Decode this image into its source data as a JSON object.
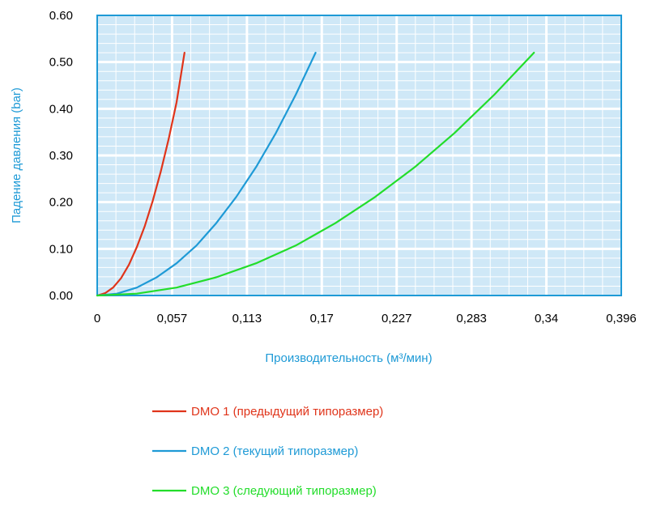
{
  "chart_data": {
    "type": "line",
    "title": "",
    "xlabel": "Производительность (м³/мин)",
    "ylabel": "Падение давления (bar)",
    "x_ticks": [
      "0",
      "0,057",
      "0,113",
      "0,17",
      "0,227",
      "0,283",
      "0,34",
      "0,396"
    ],
    "y_ticks": [
      "0.00",
      "0.10",
      "0.20",
      "0.30",
      "0.40",
      "0.50",
      "0.60"
    ],
    "xlim": [
      0,
      0.396
    ],
    "ylim": [
      0,
      0.6
    ],
    "grid": true,
    "legend_position": "bottom",
    "series": [
      {
        "name": "DMO 1 (предыдущий типоразмер)",
        "color": "#e0341a",
        "x": [
          0,
          0.006,
          0.012,
          0.018,
          0.024,
          0.03,
          0.036,
          0.042,
          0.048,
          0.054,
          0.06,
          0.066
        ],
        "y": [
          0,
          0.005,
          0.017,
          0.037,
          0.066,
          0.104,
          0.149,
          0.203,
          0.265,
          0.335,
          0.414,
          0.52
        ]
      },
      {
        "name": "DMO 2 (текущий типоразмер)",
        "color": "#1e9ad6",
        "x": [
          0,
          0.015,
          0.03,
          0.045,
          0.06,
          0.075,
          0.09,
          0.105,
          0.12,
          0.135,
          0.15,
          0.165
        ],
        "y": [
          0,
          0.004,
          0.017,
          0.039,
          0.069,
          0.107,
          0.155,
          0.211,
          0.275,
          0.348,
          0.43,
          0.52
        ]
      },
      {
        "name": "DMO 3 (следующий типоразмер)",
        "color": "#22dd2a",
        "x": [
          0,
          0.03,
          0.06,
          0.09,
          0.12,
          0.15,
          0.18,
          0.21,
          0.24,
          0.27,
          0.3,
          0.33
        ],
        "y": [
          0,
          0.004,
          0.017,
          0.039,
          0.069,
          0.107,
          0.155,
          0.211,
          0.275,
          0.348,
          0.43,
          0.52
        ]
      }
    ],
    "colors": {
      "plot_background": "#cfe8f7",
      "grid_line": "#ffffff",
      "frame": "#1e9ad6",
      "axis_title": "#1e9ad6"
    }
  }
}
